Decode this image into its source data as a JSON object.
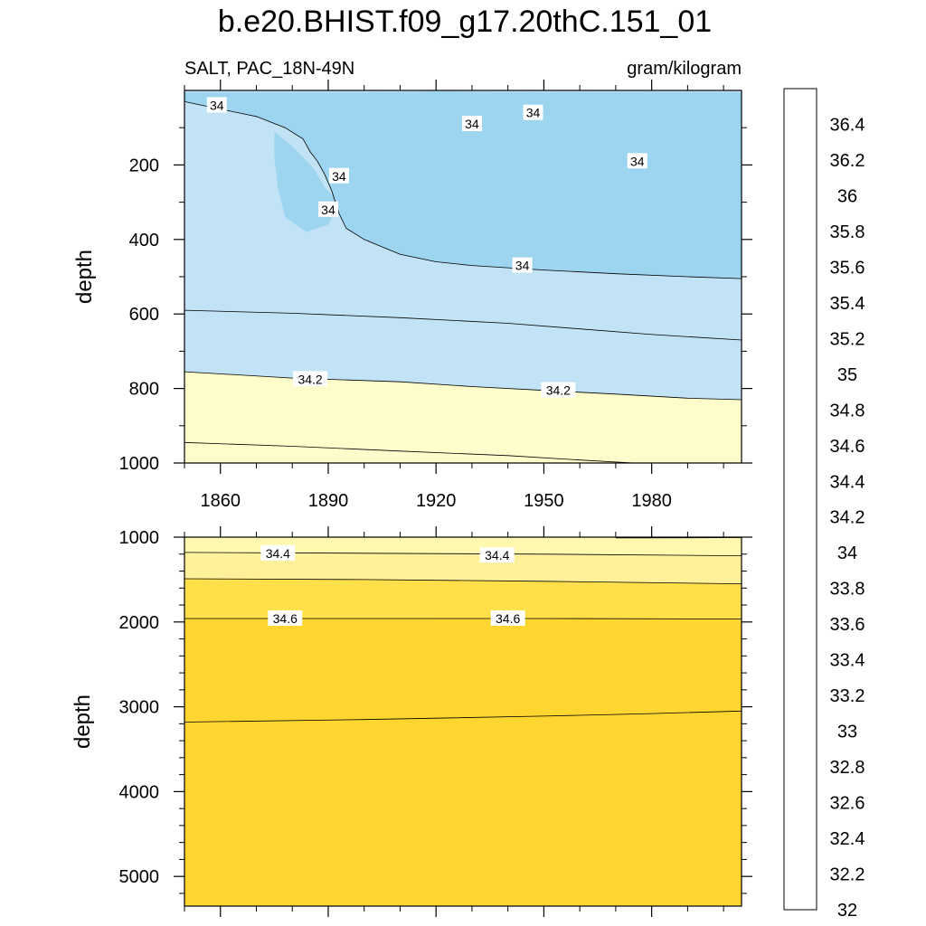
{
  "title": "b.e20.BHIST.f09_g17.20thC.151_01",
  "chart_data": {
    "type": "contour",
    "variable_label": "SALT, PAC_18N-49N",
    "units_label": "gram/kilogram",
    "colors": {
      "contour_line": "#000000",
      "label_bg": "#ffffff"
    },
    "colorbar": {
      "labels": [
        "32",
        "32.2",
        "32.4",
        "32.6",
        "32.8",
        "33",
        "33.2",
        "33.4",
        "33.6",
        "33.8",
        "34",
        "34.2",
        "34.4",
        "34.6",
        "34.8",
        "35",
        "35.2",
        "35.4",
        "35.6",
        "35.8",
        "36",
        "36.2",
        "36.4"
      ],
      "levels": [
        32,
        32.1,
        32.2,
        32.3,
        32.4,
        32.5,
        32.6,
        32.7,
        32.8,
        32.9,
        33,
        33.1,
        33.2,
        33.3,
        33.4,
        33.5,
        33.6,
        33.7,
        33.8,
        33.9,
        34,
        34.1,
        34.2,
        34.3,
        34.4,
        34.5,
        34.6,
        34.7,
        34.8,
        34.9,
        35,
        35.1,
        35.2,
        35.3,
        35.4,
        35.5,
        35.6,
        35.7,
        35.8,
        35.9,
        36,
        36.1,
        36.2,
        36.3,
        36.4,
        36.5
      ],
      "colors": [
        "#8a2be2",
        "#7a1ef0",
        "#5a14f5",
        "#3c0cf5",
        "#1a0af5",
        "#0000ff",
        "#1a1ee6",
        "#2e3ad6",
        "#3453e0",
        "#3a5fe8",
        "#2f6ef0",
        "#2a80f8",
        "#1e90ff",
        "#1aa0ff",
        "#00aefc",
        "#00bfff",
        "#20c0f0",
        "#4cc6f0",
        "#66c8f0",
        "#7fd0f2",
        "#9dd4f0",
        "#b0ddf2",
        "#c6e6f6",
        "#fffccb",
        "#fff9b0",
        "#fff08e",
        "#ffe866",
        "#ffe04c",
        "#ffd836",
        "#ffcc22",
        "#ffb818",
        "#ffa500",
        "#ff9210",
        "#ff8018",
        "#ff6a10",
        "#ff4c00",
        "#ff3010",
        "#ff1a1a",
        "#ff0000",
        "#ee0000",
        "#d80000",
        "#c80000",
        "#d43030",
        "#e05050",
        "#ec7a7a",
        "#f8b0b0"
      ]
    },
    "panels": [
      {
        "name": "upper",
        "ylabel": "depth",
        "xlim": [
          1850,
          2005
        ],
        "ylim": [
          0,
          1000
        ],
        "y_reversed": true,
        "x_ticks": [
          1860,
          1890,
          1920,
          1950,
          1980
        ],
        "x_minor": [
          1850,
          1870,
          1880,
          1900,
          1910,
          1930,
          1940,
          1960,
          1970,
          1990,
          2000
        ],
        "y_ticks": [
          200,
          400,
          600,
          800,
          1000
        ],
        "y_minor": [
          100,
          300,
          500,
          700,
          900
        ],
        "background_fill": "#c2e3f5",
        "regions": [
          {
            "level": 33.9,
            "color": "#9dd4f0",
            "polygon": [
              [
                1850,
                5
              ],
              [
                1900,
                5
              ],
              [
                1920,
                3
              ],
              [
                1950,
                5
              ],
              [
                1980,
                4
              ],
              [
                2005,
                5
              ],
              [
                2005,
                505
              ],
              [
                1990,
                500
              ],
              [
                1970,
                492
              ],
              [
                1950,
                482
              ],
              [
                1930,
                470
              ],
              [
                1920,
                460
              ],
              [
                1910,
                440
              ],
              [
                1900,
                400
              ],
              [
                1895,
                370
              ],
              [
                1893,
                330
              ],
              [
                1891,
                270
              ],
              [
                1889,
                225
              ],
              [
                1887,
                190
              ],
              [
                1885,
                165
              ],
              [
                1883,
                130
              ],
              [
                1878,
                100
              ],
              [
                1870,
                70
              ],
              [
                1860,
                50
              ],
              [
                1850,
                30
              ]
            ]
          },
          {
            "level": 33.9,
            "color": "#9dd4f0",
            "polygon": [
              [
                1875,
                110
              ],
              [
                1880,
                150
              ],
              [
                1886,
                210
              ],
              [
                1889,
                260
              ],
              [
                1893,
                300
              ],
              [
                1890,
                360
              ],
              [
                1884,
                380
              ],
              [
                1878,
                340
              ],
              [
                1876,
                260
              ],
              [
                1875,
                180
              ]
            ]
          },
          {
            "level": 34.3,
            "color": "#fffccb",
            "polygon": [
              [
                1850,
                755
              ],
              [
                1880,
                772
              ],
              [
                1910,
                782
              ],
              [
                1930,
                795
              ],
              [
                1950,
                805
              ],
              [
                1970,
                815
              ],
              [
                1990,
                826
              ],
              [
                2005,
                830
              ],
              [
                2005,
                1000
              ],
              [
                1850,
                1000
              ]
            ]
          }
        ],
        "contours": [
          {
            "label": "34",
            "points": [
              [
                1850,
                30
              ],
              [
                1860,
                50
              ],
              [
                1870,
                70
              ],
              [
                1878,
                100
              ],
              [
                1883,
                130
              ],
              [
                1885,
                165
              ],
              [
                1887,
                190
              ],
              [
                1889,
                225
              ],
              [
                1891,
                270
              ],
              [
                1893,
                330
              ],
              [
                1895,
                370
              ],
              [
                1900,
                400
              ],
              [
                1910,
                440
              ],
              [
                1920,
                460
              ],
              [
                1930,
                470
              ],
              [
                1950,
                482
              ],
              [
                1970,
                492
              ],
              [
                1990,
                500
              ],
              [
                2005,
                505
              ]
            ]
          },
          {
            "label": "34",
            "points": [
              [
                1850,
                590
              ],
              [
                1880,
                598
              ],
              [
                1910,
                610
              ],
              [
                1940,
                625
              ],
              [
                1960,
                640
              ],
              [
                1980,
                655
              ],
              [
                2005,
                670
              ]
            ]
          },
          {
            "label": "34.2",
            "points": [
              [
                1850,
                755
              ],
              [
                1880,
                772
              ],
              [
                1910,
                782
              ],
              [
                1930,
                795
              ],
              [
                1950,
                805
              ],
              [
                1970,
                815
              ],
              [
                1990,
                826
              ],
              [
                2005,
                830
              ]
            ]
          },
          {
            "label": "",
            "points": [
              [
                1850,
                945
              ],
              [
                1880,
                955
              ],
              [
                1910,
                968
              ],
              [
                1940,
                980
              ],
              [
                1960,
                992
              ],
              [
                1975,
                1000
              ]
            ]
          }
        ],
        "contour_labels": [
          {
            "text": "34",
            "x": 1859,
            "y": 40
          },
          {
            "text": "34",
            "x": 1930,
            "y": 90
          },
          {
            "text": "34",
            "x": 1947,
            "y": 60
          },
          {
            "text": "34",
            "x": 1976,
            "y": 190
          },
          {
            "text": "34",
            "x": 1893,
            "y": 230
          },
          {
            "text": "34",
            "x": 1890,
            "y": 320
          },
          {
            "text": "34",
            "x": 1944,
            "y": 470
          },
          {
            "text": "34.2",
            "x": 1885,
            "y": 775
          },
          {
            "text": "34.2",
            "x": 1954,
            "y": 805
          }
        ]
      },
      {
        "name": "lower",
        "ylabel": "depth",
        "xlim": [
          1850,
          2005
        ],
        "ylim": [
          1000,
          5350
        ],
        "y_reversed": true,
        "x_ticks": [
          1860,
          1890,
          1920,
          1950,
          1980
        ],
        "x_minor": [
          1850,
          1870,
          1880,
          1900,
          1910,
          1930,
          1940,
          1960,
          1970,
          1990,
          2000
        ],
        "y_ticks": [
          1000,
          2000,
          3000,
          4000,
          5000
        ],
        "y_minor": [
          1200,
          1400,
          1600,
          1800,
          2200,
          2400,
          2600,
          2800,
          3200,
          3400,
          3600,
          3800,
          4200,
          4400,
          4600,
          4800,
          5200
        ],
        "background_fill": "#ffd630",
        "regions": [
          {
            "level": 34.4,
            "color": "#fff09a",
            "polygon": [
              [
                1850,
                1000
              ],
              [
                2005,
                1000
              ],
              [
                2005,
                1550
              ],
              [
                1950,
                1520
              ],
              [
                1900,
                1500
              ],
              [
                1850,
                1490
              ]
            ]
          },
          {
            "level": 34.3,
            "color": "#fff9b0",
            "polygon": [
              [
                1850,
                1000
              ],
              [
                1980,
                1000
              ],
              [
                2005,
                1005
              ],
              [
                2005,
                1220
              ],
              [
                1950,
                1200
              ],
              [
                1900,
                1190
              ],
              [
                1850,
                1180
              ]
            ]
          },
          {
            "level": 34.5,
            "color": "#ffe04a",
            "polygon": [
              [
                1850,
                1490
              ],
              [
                1900,
                1500
              ],
              [
                1950,
                1520
              ],
              [
                2005,
                1550
              ],
              [
                2005,
                1965
              ],
              [
                1850,
                1960
              ]
            ]
          }
        ],
        "contours": [
          {
            "label": "34.4",
            "points": [
              [
                1850,
                1180
              ],
              [
                1900,
                1190
              ],
              [
                1950,
                1200
              ],
              [
                2005,
                1220
              ]
            ]
          },
          {
            "label": "",
            "points": [
              [
                1850,
                1490
              ],
              [
                1900,
                1500
              ],
              [
                1950,
                1520
              ],
              [
                2005,
                1550
              ]
            ]
          },
          {
            "label": "34.6",
            "points": [
              [
                1850,
                1960
              ],
              [
                1950,
                1960
              ],
              [
                2005,
                1965
              ]
            ]
          },
          {
            "label": "",
            "points": [
              [
                1850,
                3180
              ],
              [
                1900,
                3150
              ],
              [
                1950,
                3110
              ],
              [
                1980,
                3080
              ],
              [
                2005,
                3050
              ]
            ]
          },
          {
            "label": "",
            "points": [
              [
                1970,
                1010
              ],
              [
                2005,
                1005
              ]
            ]
          }
        ],
        "contour_labels": [
          {
            "text": "34.4",
            "x": 1876,
            "y": 1190
          },
          {
            "text": "34.4",
            "x": 1937,
            "y": 1215
          },
          {
            "text": "34.6",
            "x": 1878,
            "y": 1960
          },
          {
            "text": "34.6",
            "x": 1940,
            "y": 1960
          }
        ]
      }
    ]
  }
}
